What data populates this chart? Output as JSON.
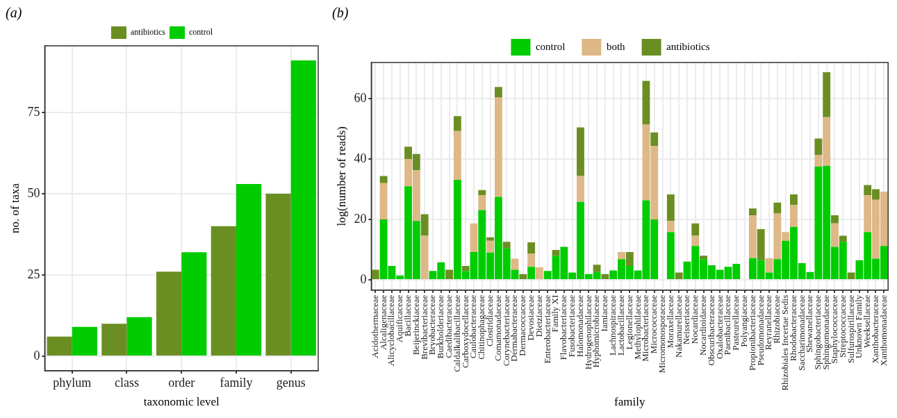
{
  "chart_data": [
    {
      "type": "bar",
      "title": "(a)",
      "xlabel": "taxonomic level",
      "ylabel": "no. of taxa",
      "categories": [
        "phylum",
        "class",
        "order",
        "family",
        "genus"
      ],
      "series": [
        {
          "name": "antibiotics",
          "color": "#6b8e23",
          "values": [
            6,
            10,
            26,
            40,
            50
          ]
        },
        {
          "name": "control",
          "color": "#00cc00",
          "values": [
            9,
            12,
            32,
            53,
            91
          ]
        }
      ],
      "ylim": [
        -4.5,
        95.5
      ],
      "yticks": [
        0,
        25,
        50,
        75
      ],
      "grid": true,
      "legend": "top"
    },
    {
      "type": "bar",
      "title": "(b)",
      "xlabel": "family",
      "ylabel": "log(number of reads)",
      "stacked": true,
      "categories": [
        "Acidothermaceae",
        "Alcaligenaceae",
        "Alicyclobacillaceae",
        "Aquificaceae",
        "Bacillaceae",
        "Beijerinckiaceae",
        "Brevibacteriaceae",
        "Bryobacteraceae",
        "Burkholderiaceae",
        "Caedibacteraceae",
        "Caldalkalibacillaceae",
        "Carboxydocellaceae",
        "Caulobacteraceae",
        "Chitinophagaceae",
        "Clostridiaceae",
        "Comamonadaceae",
        "Corynebacteriaceae",
        "Dermabacteraceae",
        "Dermacoccaceae",
        "Devosiaceae",
        "Dietziaceae",
        "Enterobacteriaceae",
        "Family XI",
        "Flavobacteriaceae",
        "Fusobacteriaceae",
        "Halomonadaceae",
        "Hydrogenophilaceae",
        "Hyphomicrobiaceae",
        "Iamiaceae",
        "Lachnospiraceae",
        "Lactobacillaceae",
        "Legionellaceae",
        "Methylophilaceae",
        "Microbacteriaceae",
        "Micrococcaceae",
        "Micromonosporaceae",
        "Moraxellaceae",
        "Nakamurellaceae",
        "Neisseriaceae",
        "Nocardiaceae",
        "Nocardioidaceae",
        "Obscuribacteraceae",
        "Oxalobacteraceae",
        "Paenibacillaceae",
        "Pasteurellaceae",
        "Polyangiaceae",
        "Propionibacteriaceae",
        "Pseudomonadaceae",
        "Reyranellaceae",
        "Rhizobiaceae",
        "Rhizobiales Incertae Sedis",
        "Rhodobacteraceae",
        "Saccharimonadaceae",
        "Shewanellaceae",
        "Sphingobacteriaceae",
        "Sphingomonadaceae",
        "Staphylococcaceae",
        "Streptococcaceae",
        "Sulfurospirillaceae",
        "Unknown Family",
        "Weeksellaceae",
        "Xanthobacteraceae",
        "Xanthomonadaceae"
      ],
      "series": [
        {
          "name": "control",
          "color": "#00cc00",
          "values": [
            0,
            20,
            4.6,
            1.4,
            31,
            19.5,
            0,
            2.9,
            5.8,
            0,
            33.1,
            2.9,
            9.2,
            23.1,
            9,
            27.5,
            10.4,
            3.3,
            0,
            4.3,
            0,
            2.9,
            8,
            10.9,
            2.4,
            25.8,
            1.9,
            2.6,
            0,
            3.1,
            6.8,
            4.6,
            3.1,
            26.3,
            20,
            0,
            15.8,
            0,
            6,
            11.2,
            6.8,
            4.8,
            3.3,
            4.3,
            5.3,
            0,
            7.2,
            6.5,
            2.4,
            6.8,
            12.9,
            17.5,
            5.5,
            2.6,
            37.5,
            37.8,
            10.9,
            12.6,
            0,
            6.5,
            15.8,
            7,
            11.2
          ]
        },
        {
          "name": "both",
          "color": "#deb887",
          "values": [
            0,
            12,
            0,
            0,
            9,
            16.8,
            14.6,
            0,
            0,
            0,
            16.2,
            0,
            9.5,
            4.9,
            3.9,
            33,
            0,
            3.7,
            0,
            4.4,
            4.1,
            0,
            0,
            0,
            0,
            8.6,
            0,
            0,
            0,
            0,
            2.4,
            0,
            0,
            25.2,
            24.4,
            0,
            3.7,
            0,
            0,
            3.4,
            0,
            0,
            0,
            0,
            0,
            0,
            14.2,
            0,
            4.8,
            15.3,
            2.9,
            7.3,
            0,
            0,
            3.9,
            16.1,
            7.8,
            0,
            0,
            0,
            12.2,
            19.5,
            18
          ]
        },
        {
          "name": "antibiotics",
          "color": "#6b8e23",
          "values": [
            3.3,
            2.4,
            0,
            0,
            4.1,
            5.4,
            7.1,
            0,
            0,
            3.3,
            4.9,
            1.7,
            0,
            1.7,
            1.2,
            3.4,
            2.2,
            0,
            1.9,
            3.7,
            0,
            0,
            1.9,
            0,
            0,
            16.1,
            0,
            2.4,
            1.9,
            0,
            0,
            4.6,
            0,
            14.4,
            4.4,
            0,
            8.8,
            2.4,
            0,
            4.1,
            1.2,
            0,
            0,
            0,
            0,
            0,
            2.2,
            10.3,
            0,
            3.5,
            0,
            3.5,
            0,
            0,
            5.4,
            14.9,
            2.7,
            2,
            2.4,
            0,
            3.4,
            3.5,
            0
          ]
        }
      ],
      "ylim": [
        -3.4,
        72
      ],
      "yticks": [
        0,
        20,
        40,
        60
      ],
      "grid": true,
      "legend": "top"
    }
  ]
}
